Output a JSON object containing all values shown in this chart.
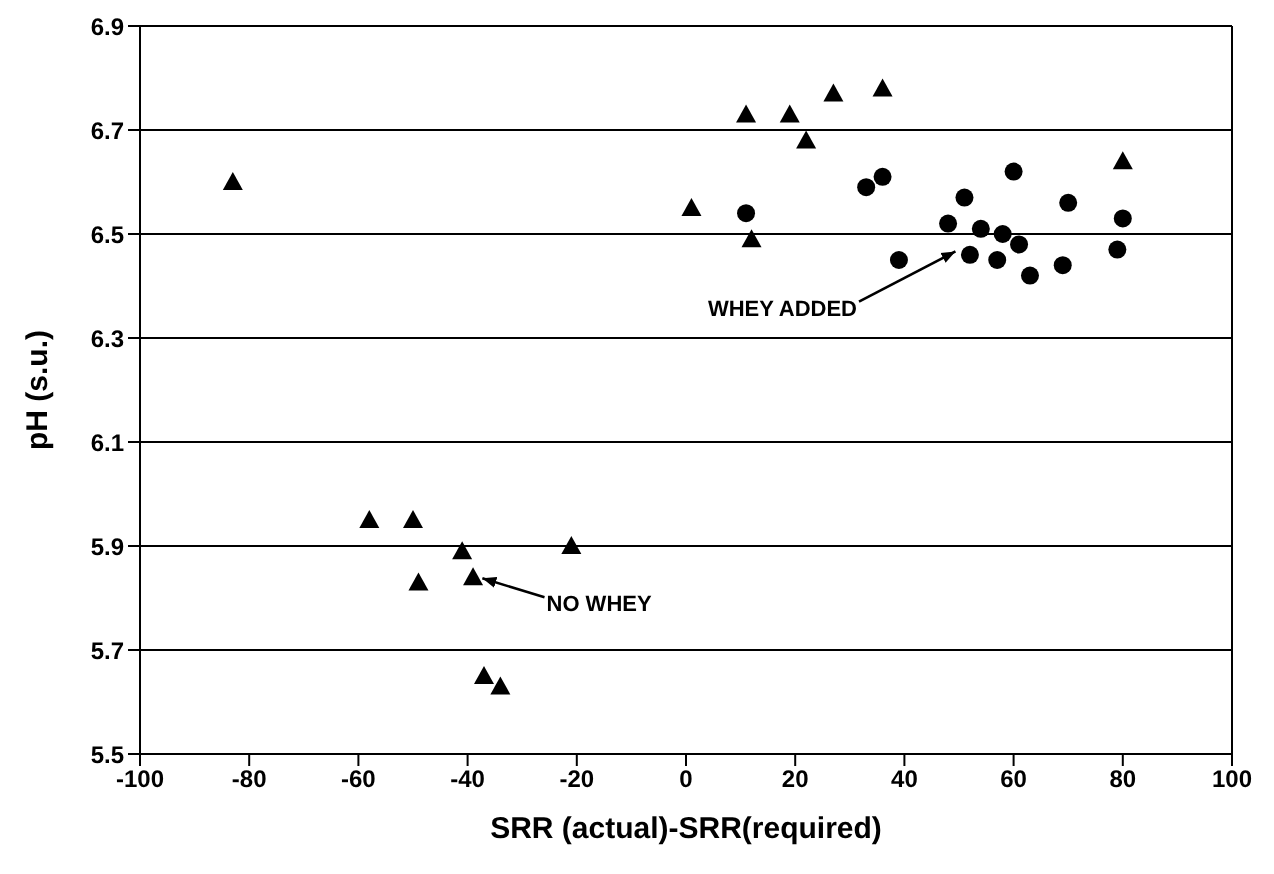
{
  "chart_data": {
    "type": "scatter",
    "xlabel": "SRR (actual)-SRR(required)",
    "ylabel": "pH (s.u.)",
    "xlim": [
      -100,
      100
    ],
    "xticks": [
      -100,
      -80,
      -60,
      -40,
      -20,
      0,
      20,
      40,
      60,
      80,
      100
    ],
    "ylim": [
      5.5,
      6.9
    ],
    "yticks": [
      5.5,
      5.7,
      5.9,
      6.1,
      6.3,
      6.5,
      6.7,
      6.9
    ],
    "grid": "y",
    "series": [
      {
        "color": "#000000",
        "marker": "triangle",
        "x": [
          -83,
          -58,
          -50,
          -49,
          -41,
          -39,
          -37,
          -34,
          -21,
          1,
          11,
          12,
          19,
          22,
          27,
          36,
          80
        ],
        "values": [
          6.6,
          5.95,
          5.95,
          5.83,
          5.89,
          5.84,
          5.65,
          5.63,
          5.9,
          6.55,
          6.73,
          6.49,
          6.73,
          6.68,
          6.77,
          6.78,
          6.64
        ]
      },
      {
        "color": "#000000",
        "marker": "circle",
        "x": [
          11,
          33,
          36,
          39,
          48,
          51,
          52,
          54,
          57,
          58,
          60,
          61,
          63,
          69,
          70,
          79,
          80
        ],
        "values": [
          6.54,
          6.59,
          6.61,
          6.45,
          6.52,
          6.57,
          6.46,
          6.51,
          6.45,
          6.5,
          6.62,
          6.48,
          6.42,
          6.44,
          6.56,
          6.47,
          6.53
        ]
      }
    ],
    "annotations": [
      {
        "text": "WHEY ADDED",
        "x": 50,
        "y": 6.47
      },
      {
        "text": "NO WHEY",
        "x": -38,
        "y": 5.84
      }
    ]
  }
}
